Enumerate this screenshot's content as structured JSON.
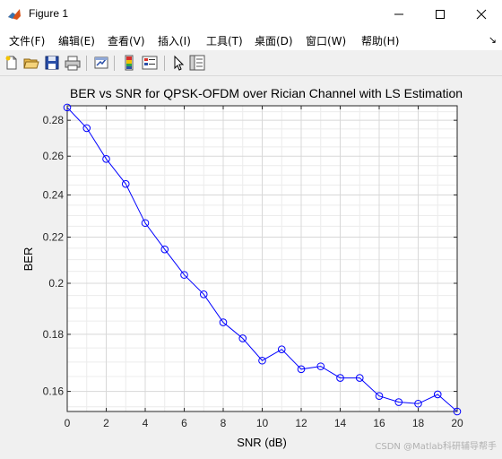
{
  "window": {
    "title": "Figure 1",
    "icon": "matlab-figure-icon",
    "controls": [
      "minimize-icon",
      "maximize-icon",
      "close-icon"
    ]
  },
  "menubar": {
    "items": [
      {
        "label": "文件(F)"
      },
      {
        "label": "编辑(E)"
      },
      {
        "label": "查看(V)"
      },
      {
        "label": "插入(I)"
      },
      {
        "label": "工具(T)"
      },
      {
        "label": "桌面(D)"
      },
      {
        "label": "窗口(W)"
      },
      {
        "label": "帮助(H)"
      }
    ],
    "overflow_glyph": "↘"
  },
  "toolbar": {
    "buttons": [
      "new-figure-icon",
      "open-file-icon",
      "save-icon",
      "print-icon",
      "link-plot-icon",
      "insert-colorbar-icon",
      "insert-legend-icon",
      "edit-plot-arrow-icon",
      "property-inspector-icon"
    ]
  },
  "chart_data": {
    "type": "line",
    "title": "BER vs SNR for QPSK-OFDM over Rician Channel with LS Estimation",
    "xlabel": "SNR (dB)",
    "ylabel": "BER",
    "yscale": "log",
    "xlim": [
      0,
      20
    ],
    "ylim": [
      0.1535,
      0.2885
    ],
    "x_ticks": [
      "0",
      "2",
      "4",
      "6",
      "8",
      "10",
      "12",
      "14",
      "16",
      "18",
      "20"
    ],
    "y_ticks": [
      "0.16",
      "0.18",
      "0.2",
      "0.22",
      "0.24",
      "0.26",
      "0.28"
    ],
    "grid": true,
    "minor_grid": true,
    "series": [
      {
        "color": "#0000ff",
        "marker": "circle",
        "x": [
          0,
          1,
          2,
          3,
          4,
          5,
          6,
          7,
          8,
          9,
          10,
          11,
          12,
          13,
          14,
          15,
          16,
          17,
          18,
          19,
          20
        ],
        "values": [
          0.2875,
          0.2755,
          0.2585,
          0.2455,
          0.2265,
          0.2145,
          0.2035,
          0.1955,
          0.1845,
          0.1785,
          0.1705,
          0.1745,
          0.1675,
          0.1685,
          0.1645,
          0.1645,
          0.1585,
          0.1565,
          0.156,
          0.159,
          0.1535
        ]
      }
    ]
  },
  "watermark": "CSDN @Matlab科研辅导帮手"
}
